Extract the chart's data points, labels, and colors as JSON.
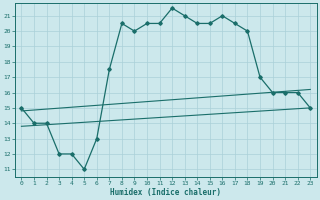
{
  "xlabel": "Humidex (Indice chaleur)",
  "bg_color": "#cce8ec",
  "grid_color": "#aad0d8",
  "line_color": "#1a6e6a",
  "xlim": [
    -0.5,
    23.5
  ],
  "ylim": [
    10.5,
    21.8
  ],
  "yticks": [
    11,
    12,
    13,
    14,
    15,
    16,
    17,
    18,
    19,
    20,
    21
  ],
  "xticks": [
    0,
    1,
    2,
    3,
    4,
    5,
    6,
    7,
    8,
    9,
    10,
    11,
    12,
    13,
    14,
    15,
    16,
    17,
    18,
    19,
    20,
    21,
    22,
    23
  ],
  "line1_x": [
    0,
    1,
    2,
    3,
    4,
    5,
    6,
    7,
    8,
    9,
    10,
    11,
    12,
    13,
    14,
    15,
    16,
    17,
    18,
    19,
    20,
    21,
    22,
    23
  ],
  "line1_y": [
    15.0,
    14.0,
    14.0,
    12.0,
    12.0,
    11.0,
    13.0,
    17.5,
    20.5,
    20.0,
    20.5,
    20.5,
    21.5,
    21.0,
    20.5,
    20.5,
    21.0,
    20.5,
    20.0,
    17.0,
    16.0,
    16.0,
    16.0,
    15.0
  ],
  "line2_x": [
    0,
    23
  ],
  "line2_y": [
    13.8,
    15.0
  ],
  "line3_x": [
    0,
    23
  ],
  "line3_y": [
    14.8,
    16.2
  ]
}
